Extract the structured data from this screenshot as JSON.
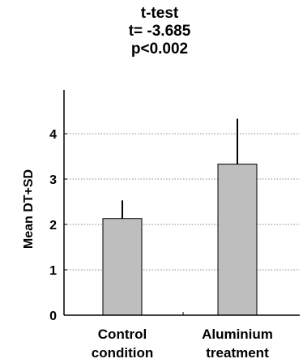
{
  "chart_data": {
    "type": "bar",
    "title_lines": [
      "t-test",
      "t= -3.685",
      "p<0.002"
    ],
    "xlabel": "",
    "ylabel": "Mean DT+SD",
    "ylim": [
      0,
      5
    ],
    "yticks": [
      0,
      1,
      2,
      3,
      4
    ],
    "grid": true,
    "categories": [
      [
        "Control",
        "condition"
      ],
      [
        "Aluminium",
        "treatment"
      ]
    ],
    "values": [
      2.13,
      3.33
    ],
    "errors": [
      0.4,
      1.0
    ],
    "colors": {
      "bar_fill": "#bebebe",
      "bar_stroke": "#000000",
      "grid": "#888888",
      "axis": "#000000"
    }
  }
}
